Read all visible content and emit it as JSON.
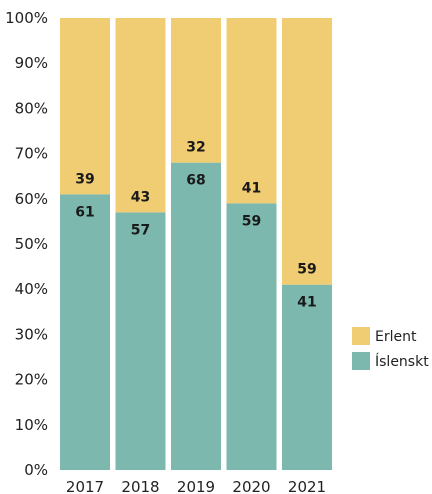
{
  "chart_data": {
    "type": "bar",
    "stacked": true,
    "categories": [
      "2017",
      "2018",
      "2019",
      "2020",
      "2021"
    ],
    "series": [
      {
        "name": "Íslenskt",
        "values": [
          61,
          57,
          68,
          59,
          41
        ],
        "color": "#7cb8ad"
      },
      {
        "name": "Erlent",
        "values": [
          39,
          43,
          32,
          41,
          59
        ],
        "color": "#f0cc72"
      }
    ],
    "ylim": [
      0,
      100
    ],
    "yticks": [
      "0%",
      "10%",
      "20%",
      "30%",
      "40%",
      "50%",
      "60%",
      "70%",
      "80%",
      "90%",
      "100%"
    ],
    "legend": {
      "placement": "right",
      "order": [
        "Erlent",
        "Íslenskt"
      ]
    },
    "grid": false
  }
}
